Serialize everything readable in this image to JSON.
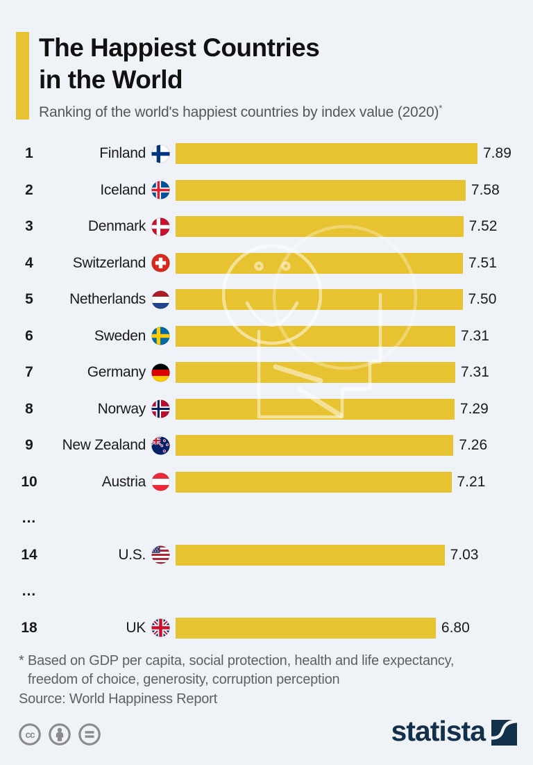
{
  "page": {
    "background_color": "#eff3f7",
    "accent_color": "#e8c331",
    "brand_color": "#12304a"
  },
  "header": {
    "title_line1": "The Happiest Countries",
    "title_line2": "in the World",
    "subtitle": "Ranking of the world's happiest countries by index value (2020)",
    "subtitle_superscript": "*"
  },
  "chart_data": {
    "type": "bar",
    "orientation": "horizontal",
    "title": "The Happiest Countries in the World",
    "subtitle": "Ranking of the world's happiest countries by index value (2020)*",
    "bar_color": "#e8c331",
    "value_axis": {
      "min": 0,
      "max_shown_value": 7.89,
      "axis_labels_visible": false
    },
    "categories": [
      "Finland",
      "Iceland",
      "Denmark",
      "Switzerland",
      "Netherlands",
      "Sweden",
      "Germany",
      "Norway",
      "New Zealand",
      "Austria",
      "U.S.",
      "UK"
    ],
    "values": [
      7.89,
      7.58,
      7.52,
      7.51,
      7.5,
      7.31,
      7.31,
      7.29,
      7.26,
      7.21,
      7.03,
      6.8
    ],
    "rows": [
      {
        "rank": "1",
        "country": "Finland",
        "flag": "flag-finland",
        "value": 7.89,
        "value_label": "7.89"
      },
      {
        "rank": "2",
        "country": "Iceland",
        "flag": "flag-iceland",
        "value": 7.58,
        "value_label": "7.58"
      },
      {
        "rank": "3",
        "country": "Denmark",
        "flag": "flag-denmark",
        "value": 7.52,
        "value_label": "7.52"
      },
      {
        "rank": "4",
        "country": "Switzerland",
        "flag": "flag-switzerland",
        "value": 7.51,
        "value_label": "7.51"
      },
      {
        "rank": "5",
        "country": "Netherlands",
        "flag": "flag-netherlands",
        "value": 7.5,
        "value_label": "7.50"
      },
      {
        "rank": "6",
        "country": "Sweden",
        "flag": "flag-sweden",
        "value": 7.31,
        "value_label": "7.31"
      },
      {
        "rank": "7",
        "country": "Germany",
        "flag": "flag-germany",
        "value": 7.31,
        "value_label": "7.31"
      },
      {
        "rank": "8",
        "country": "Norway",
        "flag": "flag-norway",
        "value": 7.29,
        "value_label": "7.29"
      },
      {
        "rank": "9",
        "country": "New Zealand",
        "flag": "flag-new-zealand",
        "value": 7.26,
        "value_label": "7.26"
      },
      {
        "rank": "10",
        "country": "Austria",
        "flag": "flag-austria",
        "value": 7.21,
        "value_label": "7.21"
      },
      {
        "ellipsis": "..."
      },
      {
        "rank": "14",
        "country": "U.S.",
        "flag": "flag-us",
        "value": 7.03,
        "value_label": "7.03"
      },
      {
        "ellipsis": "..."
      },
      {
        "rank": "18",
        "country": "UK",
        "flag": "flag-uk",
        "value": 6.8,
        "value_label": "6.80"
      }
    ]
  },
  "footer": {
    "note_line1": "* Based on GDP per capita, social protection, health and life expectancy,",
    "note_line2": "freedom of choice, generosity, corruption perception",
    "source": "Source: World Happiness Report",
    "license_icons": [
      "cc-icon",
      "attribution-icon",
      "equal-icon"
    ],
    "brand_name": "statista"
  }
}
